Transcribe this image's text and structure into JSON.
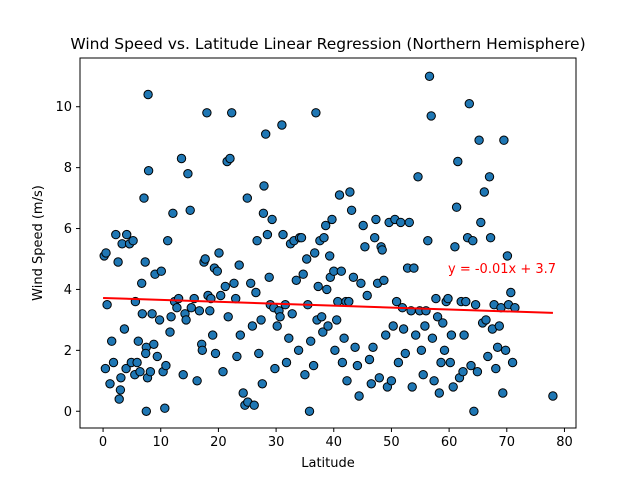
{
  "chart_data": {
    "type": "scatter",
    "title": "Wind Speed vs. Latitude Linear Regression (Northern Hemisphere)",
    "xlabel": "Latitude",
    "ylabel": "Wind Speed (m/s)",
    "xlim": [
      -4,
      82
    ],
    "ylim": [
      -0.55,
      11.6
    ],
    "xticks": [
      0,
      10,
      20,
      30,
      40,
      50,
      60,
      70,
      80
    ],
    "yticks": [
      0,
      2,
      4,
      6,
      8,
      10
    ],
    "grid": false,
    "colors": {
      "points": "#1f77b4",
      "point_edge": "#000000",
      "regression": "#ff0000",
      "annotation": "#ff0000"
    },
    "regression": {
      "slope": -0.0063,
      "intercept": 3.72,
      "x_range": [
        0,
        78
      ],
      "label": "y = -0.01x + 3.7"
    },
    "points": [
      [
        0.2,
        5.1
      ],
      [
        0.5,
        5.2
      ],
      [
        0.7,
        3.5
      ],
      [
        0.4,
        1.4
      ],
      [
        1.2,
        0.9
      ],
      [
        1.5,
        2.3
      ],
      [
        1.8,
        1.6
      ],
      [
        2.2,
        5.8
      ],
      [
        2.6,
        4.9
      ],
      [
        3.1,
        1.1
      ],
      [
        3.3,
        5.5
      ],
      [
        3.0,
        0.7
      ],
      [
        2.8,
        0.4
      ],
      [
        3.7,
        2.7
      ],
      [
        4.1,
        5.8
      ],
      [
        4.0,
        1.4
      ],
      [
        4.6,
        5.5
      ],
      [
        4.9,
        1.6
      ],
      [
        5.2,
        5.6
      ],
      [
        5.5,
        1.2
      ],
      [
        5.6,
        3.6
      ],
      [
        5.9,
        1.6
      ],
      [
        6.1,
        2.3
      ],
      [
        6.4,
        1.3
      ],
      [
        6.7,
        4.2
      ],
      [
        6.8,
        3.2
      ],
      [
        7.1,
        7.0
      ],
      [
        7.3,
        4.9
      ],
      [
        7.5,
        2.1
      ],
      [
        7.4,
        1.9
      ],
      [
        7.8,
        10.4
      ],
      [
        7.9,
        7.9
      ],
      [
        7.7,
        1.1
      ],
      [
        7.5,
        0.0
      ],
      [
        8.2,
        1.3
      ],
      [
        8.5,
        3.2
      ],
      [
        8.8,
        2.2
      ],
      [
        9.0,
        4.5
      ],
      [
        9.4,
        1.8
      ],
      [
        9.8,
        3.0
      ],
      [
        10.1,
        4.6
      ],
      [
        10.4,
        1.3
      ],
      [
        10.7,
        0.1
      ],
      [
        10.9,
        1.5
      ],
      [
        11.2,
        5.6
      ],
      [
        11.6,
        2.6
      ],
      [
        11.8,
        3.1
      ],
      [
        12.1,
        6.5
      ],
      [
        12.4,
        3.6
      ],
      [
        12.8,
        3.4
      ],
      [
        13.1,
        3.7
      ],
      [
        13.6,
        8.3
      ],
      [
        13.9,
        1.2
      ],
      [
        14.2,
        3.2
      ],
      [
        14.4,
        3.0
      ],
      [
        14.7,
        7.8
      ],
      [
        15.1,
        6.6
      ],
      [
        15.3,
        3.4
      ],
      [
        15.8,
        3.7
      ],
      [
        16.3,
        1.0
      ],
      [
        16.7,
        3.3
      ],
      [
        17.1,
        2.2
      ],
      [
        17.2,
        2.0
      ],
      [
        17.5,
        4.9
      ],
      [
        17.7,
        5.0
      ],
      [
        18.0,
        9.8
      ],
      [
        18.2,
        3.8
      ],
      [
        18.5,
        3.3
      ],
      [
        18.7,
        3.7
      ],
      [
        19.0,
        2.5
      ],
      [
        19.3,
        4.7
      ],
      [
        19.5,
        1.9
      ],
      [
        19.8,
        4.6
      ],
      [
        20.1,
        5.2
      ],
      [
        20.4,
        3.8
      ],
      [
        20.8,
        1.3
      ],
      [
        21.2,
        4.1
      ],
      [
        21.5,
        8.2
      ],
      [
        21.7,
        3.1
      ],
      [
        22.0,
        8.3
      ],
      [
        22.3,
        9.8
      ],
      [
        22.7,
        4.2
      ],
      [
        23.0,
        3.7
      ],
      [
        23.2,
        1.8
      ],
      [
        23.6,
        4.8
      ],
      [
        23.8,
        2.5
      ],
      [
        24.3,
        0.6
      ],
      [
        24.6,
        0.2
      ],
      [
        25.1,
        0.3
      ],
      [
        25.0,
        7.0
      ],
      [
        25.6,
        4.2
      ],
      [
        25.9,
        2.8
      ],
      [
        26.2,
        0.2
      ],
      [
        26.5,
        3.9
      ],
      [
        26.7,
        5.6
      ],
      [
        27.0,
        1.9
      ],
      [
        27.4,
        3.0
      ],
      [
        27.6,
        0.9
      ],
      [
        27.8,
        6.5
      ],
      [
        27.9,
        7.4
      ],
      [
        28.2,
        9.1
      ],
      [
        28.5,
        5.8
      ],
      [
        28.8,
        4.4
      ],
      [
        29.0,
        3.5
      ],
      [
        29.3,
        6.3
      ],
      [
        29.6,
        3.4
      ],
      [
        29.8,
        1.4
      ],
      [
        30.2,
        2.8
      ],
      [
        30.5,
        3.3
      ],
      [
        30.7,
        3.1
      ],
      [
        31.0,
        9.4
      ],
      [
        31.2,
        5.8
      ],
      [
        31.6,
        3.5
      ],
      [
        31.8,
        1.6
      ],
      [
        32.2,
        2.4
      ],
      [
        32.5,
        5.5
      ],
      [
        32.8,
        3.2
      ],
      [
        33.1,
        5.6
      ],
      [
        33.5,
        4.3
      ],
      [
        33.9,
        2.0
      ],
      [
        34.1,
        5.7
      ],
      [
        34.4,
        5.7
      ],
      [
        34.7,
        4.5
      ],
      [
        35.0,
        1.2
      ],
      [
        35.3,
        5.0
      ],
      [
        35.5,
        3.5
      ],
      [
        35.8,
        0.0
      ],
      [
        36.0,
        2.3
      ],
      [
        36.5,
        1.5
      ],
      [
        36.7,
        5.2
      ],
      [
        36.9,
        9.8
      ],
      [
        37.1,
        3.0
      ],
      [
        37.3,
        4.1
      ],
      [
        37.6,
        5.6
      ],
      [
        37.9,
        3.1
      ],
      [
        38.1,
        2.6
      ],
      [
        38.3,
        5.7
      ],
      [
        38.6,
        6.1
      ],
      [
        38.8,
        4.0
      ],
      [
        39.0,
        2.8
      ],
      [
        39.3,
        5.1
      ],
      [
        39.4,
        4.4
      ],
      [
        39.7,
        6.3
      ],
      [
        40.0,
        4.6
      ],
      [
        40.2,
        2.0
      ],
      [
        40.5,
        3.0
      ],
      [
        40.7,
        3.6
      ],
      [
        41.0,
        7.1
      ],
      [
        41.3,
        4.6
      ],
      [
        41.5,
        1.6
      ],
      [
        41.8,
        2.4
      ],
      [
        42.1,
        3.6
      ],
      [
        42.3,
        1.0
      ],
      [
        42.6,
        3.6
      ],
      [
        42.8,
        7.2
      ],
      [
        43.1,
        6.6
      ],
      [
        43.4,
        4.4
      ],
      [
        43.7,
        2.1
      ],
      [
        44.1,
        1.5
      ],
      [
        44.4,
        0.5
      ],
      [
        44.7,
        4.2
      ],
      [
        45.1,
        6.1
      ],
      [
        45.4,
        5.4
      ],
      [
        45.8,
        3.8
      ],
      [
        46.2,
        1.7
      ],
      [
        46.5,
        0.9
      ],
      [
        46.8,
        2.1
      ],
      [
        47.1,
        5.7
      ],
      [
        47.3,
        6.3
      ],
      [
        47.6,
        4.2
      ],
      [
        47.9,
        1.1
      ],
      [
        48.2,
        5.4
      ],
      [
        48.4,
        5.3
      ],
      [
        48.7,
        4.3
      ],
      [
        49.0,
        2.5
      ],
      [
        49.3,
        0.8
      ],
      [
        49.6,
        6.2
      ],
      [
        50.0,
        1.0
      ],
      [
        50.3,
        2.8
      ],
      [
        50.6,
        6.3
      ],
      [
        50.9,
        3.6
      ],
      [
        51.2,
        1.6
      ],
      [
        51.6,
        6.2
      ],
      [
        51.9,
        3.4
      ],
      [
        52.1,
        2.7
      ],
      [
        52.4,
        1.9
      ],
      [
        52.8,
        4.7
      ],
      [
        53.1,
        6.2
      ],
      [
        53.4,
        3.3
      ],
      [
        53.6,
        0.8
      ],
      [
        53.9,
        4.7
      ],
      [
        54.2,
        2.5
      ],
      [
        54.6,
        7.7
      ],
      [
        54.9,
        3.3
      ],
      [
        55.2,
        2.0
      ],
      [
        55.5,
        1.2
      ],
      [
        55.8,
        2.8
      ],
      [
        56.0,
        3.3
      ],
      [
        56.3,
        5.6
      ],
      [
        56.6,
        11.0
      ],
      [
        56.9,
        9.7
      ],
      [
        57.1,
        2.4
      ],
      [
        57.4,
        1.0
      ],
      [
        57.7,
        3.7
      ],
      [
        58.0,
        3.1
      ],
      [
        58.3,
        0.6
      ],
      [
        58.6,
        1.6
      ],
      [
        58.9,
        2.9
      ],
      [
        59.2,
        2.0
      ],
      [
        59.5,
        3.6
      ],
      [
        59.8,
        3.7
      ],
      [
        60.2,
        1.6
      ],
      [
        60.4,
        2.5
      ],
      [
        60.7,
        0.8
      ],
      [
        61.0,
        5.4
      ],
      [
        61.3,
        6.7
      ],
      [
        61.5,
        8.2
      ],
      [
        61.8,
        1.1
      ],
      [
        62.1,
        3.6
      ],
      [
        62.4,
        1.3
      ],
      [
        62.6,
        2.5
      ],
      [
        62.9,
        3.6
      ],
      [
        63.2,
        5.7
      ],
      [
        63.5,
        10.1
      ],
      [
        63.8,
        1.5
      ],
      [
        64.1,
        5.6
      ],
      [
        64.3,
        0.0
      ],
      [
        64.6,
        3.5
      ],
      [
        64.9,
        1.3
      ],
      [
        65.2,
        8.9
      ],
      [
        65.5,
        6.2
      ],
      [
        65.8,
        2.9
      ],
      [
        66.1,
        7.2
      ],
      [
        66.4,
        3.0
      ],
      [
        66.7,
        1.8
      ],
      [
        67.0,
        7.7
      ],
      [
        67.2,
        5.7
      ],
      [
        67.5,
        2.7
      ],
      [
        67.8,
        3.5
      ],
      [
        68.1,
        1.4
      ],
      [
        68.4,
        2.1
      ],
      [
        68.7,
        2.8
      ],
      [
        69.0,
        3.4
      ],
      [
        69.3,
        0.6
      ],
      [
        69.5,
        8.9
      ],
      [
        69.8,
        2.0
      ],
      [
        70.1,
        5.1
      ],
      [
        70.3,
        3.5
      ],
      [
        70.7,
        3.9
      ],
      [
        71.0,
        1.6
      ],
      [
        71.4,
        3.4
      ],
      [
        78.0,
        0.5
      ]
    ]
  }
}
